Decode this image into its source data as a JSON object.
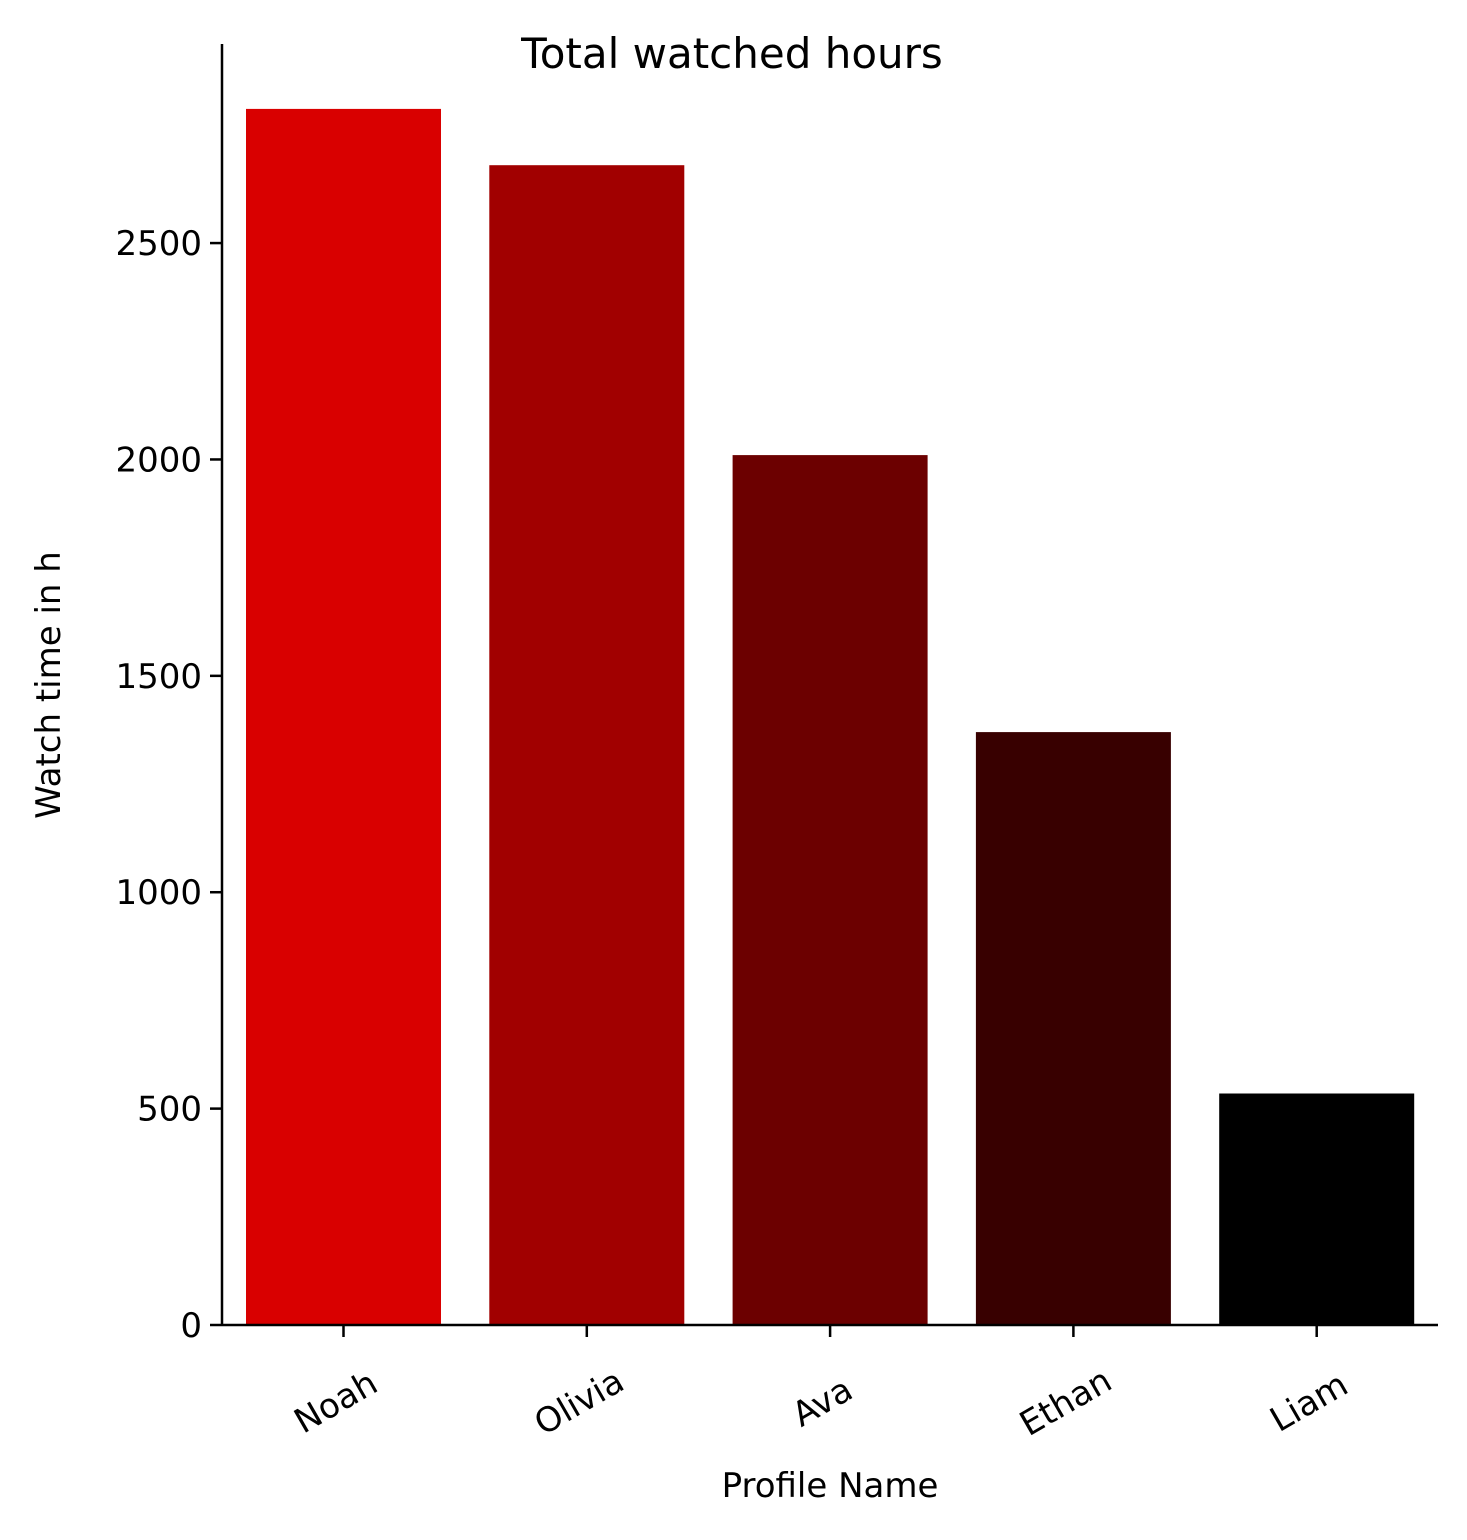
{
  "chart_data": {
    "type": "bar",
    "title": "Total watched hours",
    "xlabel": "Profile Name",
    "ylabel": "Watch time in h",
    "categories": [
      "Noah",
      "Olivia",
      "Ava",
      "Ethan",
      "Liam"
    ],
    "values": [
      2810,
      2680,
      2010,
      1370,
      535
    ],
    "colors": [
      "#d90000",
      "#a10000",
      "#6c0000",
      "#380000",
      "#000000"
    ],
    "yticks": [
      "0",
      "500",
      "1000",
      "1500",
      "2000",
      "2500"
    ],
    "ylim": [
      0,
      2960
    ],
    "grid": false,
    "legend": "none"
  }
}
